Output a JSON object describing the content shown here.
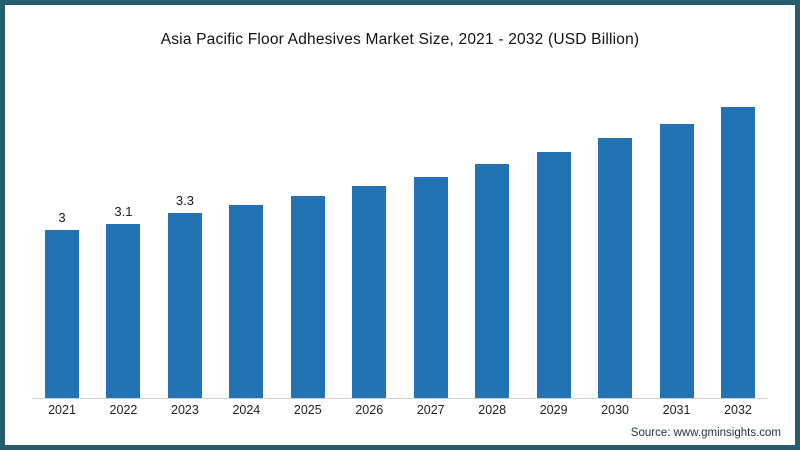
{
  "colors": {
    "bar": "#2272b4",
    "frame_border": "#265e6e",
    "baseline": "#cfcfcf"
  },
  "source": "Source: www.gminsights.com",
  "chart_data": {
    "type": "bar",
    "title": "Asia Pacific Floor Adhesives Market Size, 2021 - 2032 (USD Billion)",
    "categories": [
      "2021",
      "2022",
      "2023",
      "2024",
      "2025",
      "2026",
      "2027",
      "2028",
      "2029",
      "2030",
      "2031",
      "2032"
    ],
    "values": [
      3,
      3.1,
      3.3,
      3.45,
      3.6,
      3.78,
      3.95,
      4.18,
      4.4,
      4.65,
      4.9,
      5.2
    ],
    "data_labels": [
      "3",
      "3.1",
      "3.3",
      "",
      "",
      "",
      "",
      "",
      "",
      "",
      "",
      ""
    ],
    "xlabel": "",
    "ylabel": "",
    "ylim": [
      0,
      5.5
    ],
    "grid": false,
    "legend": false,
    "bar_color": "#2272b4"
  }
}
